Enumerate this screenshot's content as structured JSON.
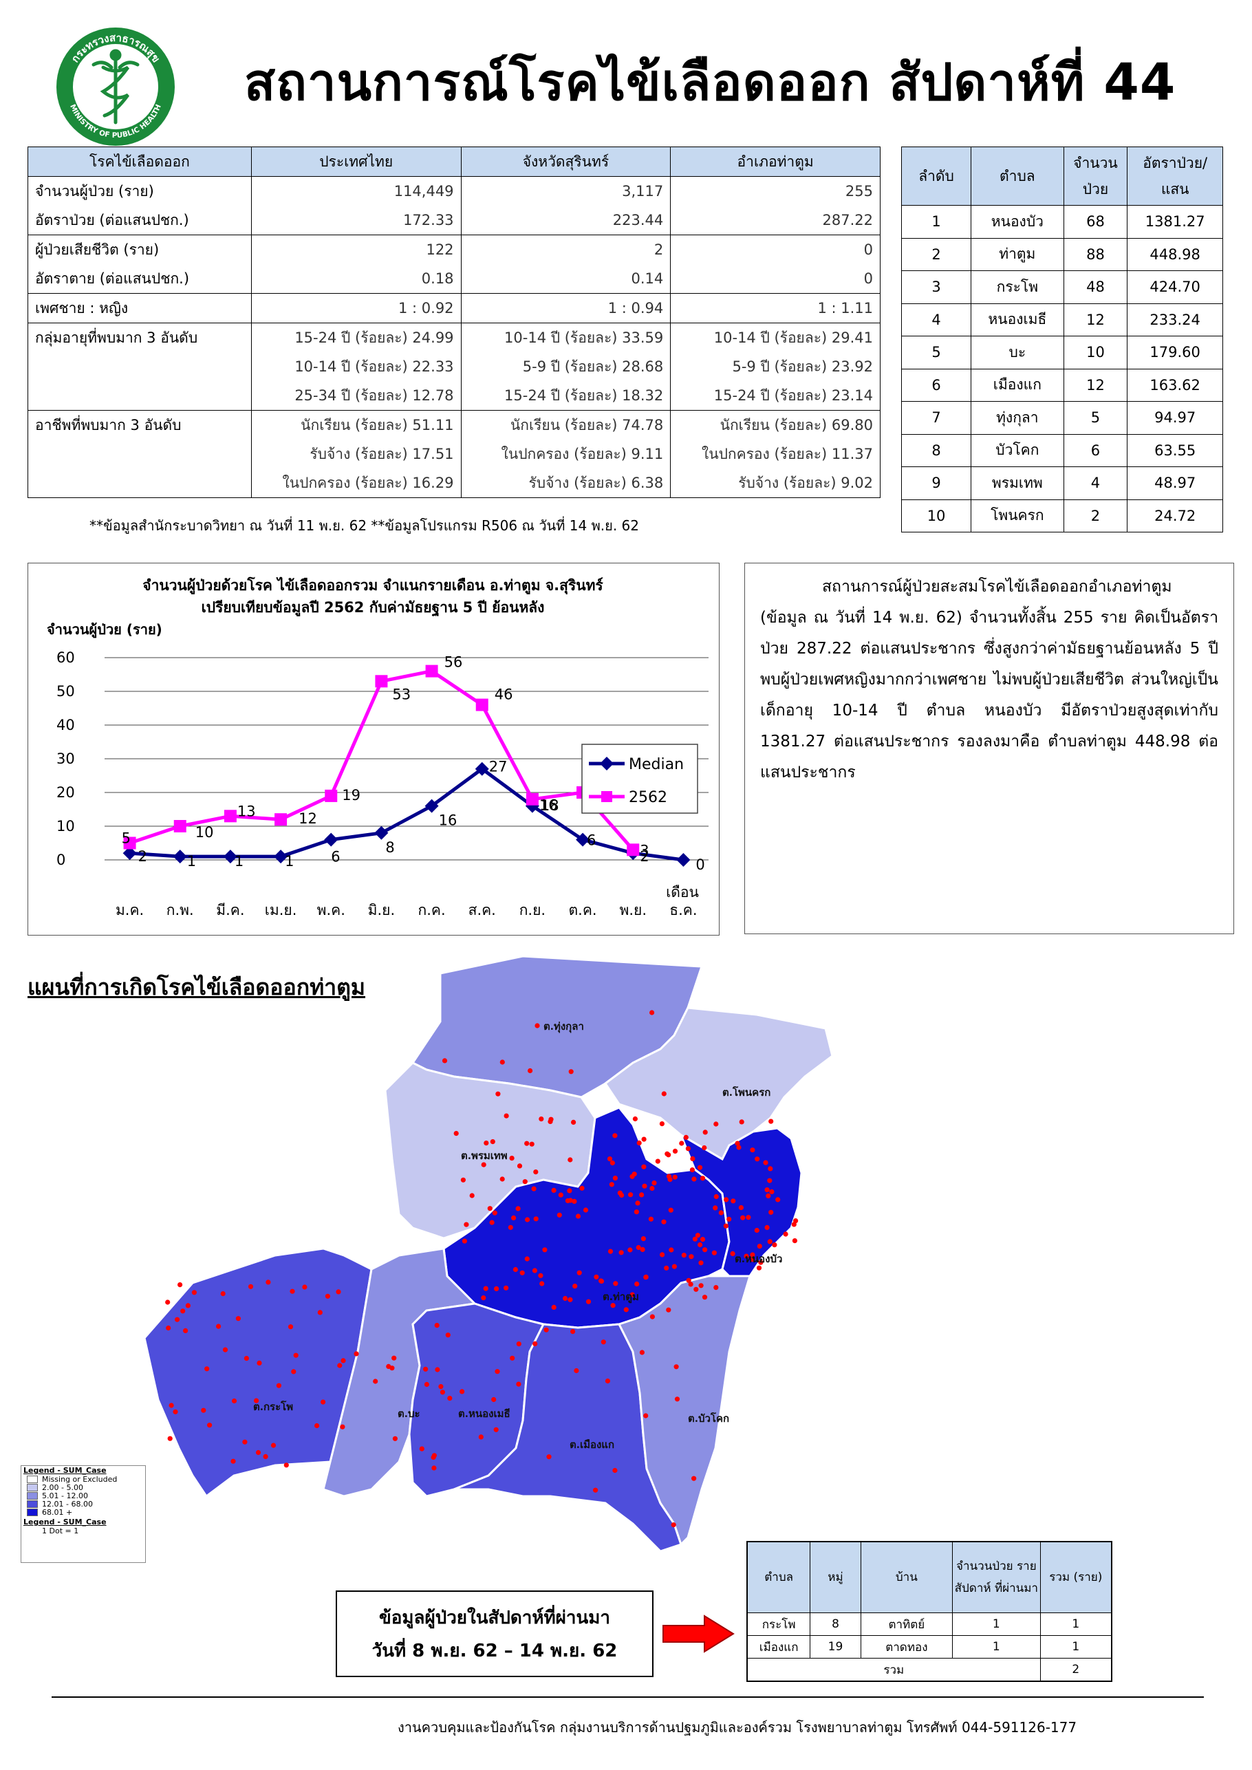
{
  "header": {
    "title": "สถานการณ์โรคไข้เลือดออก สัปดาห์ที่ 44",
    "logo_text_top": "กระทรวงสาธารณสุข",
    "logo_text_bottom": "MINISTRY OF PUBLIC HEALTH"
  },
  "summary_table": {
    "headers": [
      "โรคไข้เลือดออก",
      "ประเทศไทย",
      "จังหวัดสุรินทร์",
      "อำเภอท่าตูม"
    ],
    "rows": [
      {
        "label": "จำนวนผู้ป่วย (ราย)",
        "values": [
          "114,449",
          "3,117",
          "255"
        ]
      },
      {
        "label": "อัตราป่วย (ต่อแสนปชก.)",
        "values": [
          "172.33",
          "223.44",
          "287.22"
        ]
      },
      {
        "label": "ผู้ป่วยเสียชีวิต (ราย)",
        "values": [
          "122",
          "2",
          "0"
        ]
      },
      {
        "label": "อัตราตาย (ต่อแสนปชก.)",
        "values": [
          "0.18",
          "0.14",
          "0"
        ]
      },
      {
        "label": "เพศชาย : หญิง",
        "values": [
          "1 : 0.92",
          "1 : 0.94",
          "1 : 1.11"
        ]
      },
      {
        "label": "กลุ่มอายุที่พบมาก 3 อันดับ",
        "values": [
          "15-24 ปี (ร้อยละ) 24.99",
          "10-14 ปี (ร้อยละ) 33.59",
          "10-14 ปี (ร้อยละ) 29.41"
        ]
      },
      {
        "label": "",
        "values": [
          "10-14 ปี (ร้อยละ) 22.33",
          "5-9 ปี (ร้อยละ) 28.68",
          "5-9 ปี (ร้อยละ) 23.92"
        ]
      },
      {
        "label": "",
        "values": [
          "25-34 ปี (ร้อยละ) 12.78",
          "15-24 ปี (ร้อยละ) 18.32",
          "15-24 ปี (ร้อยละ) 23.14"
        ]
      },
      {
        "label": "อาชีพที่พบมาก 3 อันดับ",
        "values": [
          "นักเรียน (ร้อยละ) 51.11",
          "นักเรียน (ร้อยละ) 74.78",
          "นักเรียน (ร้อยละ) 69.80"
        ]
      },
      {
        "label": "",
        "values": [
          "รับจ้าง (ร้อยละ) 17.51",
          "ในปกครอง (ร้อยละ) 9.11",
          "ในปกครอง (ร้อยละ) 11.37"
        ]
      },
      {
        "label": "",
        "values": [
          "ในปกครอง (ร้อยละ) 16.29",
          "รับจ้าง (ร้อยละ) 6.38",
          "รับจ้าง (ร้อยละ) 9.02"
        ]
      }
    ]
  },
  "footnote": "**ข้อมูลสำนักระบาดวิทยา ณ วันที่ 11 พ.ย. 62 **ข้อมูลโปรแกรม R506 ณ วันที่ 14 พ.ย. 62",
  "rank_table": {
    "headers": [
      "ลำดับ",
      "ตำบล",
      "จำนวน ป่วย",
      "อัตราป่วย/ แสน"
    ],
    "rows": [
      [
        "1",
        "หนองบัว",
        "68",
        "1381.27"
      ],
      [
        "2",
        "ท่าตูม",
        "88",
        "448.98"
      ],
      [
        "3",
        "กระโพ",
        "48",
        "424.70"
      ],
      [
        "4",
        "หนองเมธี",
        "12",
        "233.24"
      ],
      [
        "5",
        "บะ",
        "10",
        "179.60"
      ],
      [
        "6",
        "เมืองแก",
        "12",
        "163.62"
      ],
      [
        "7",
        "ทุ่งกุลา",
        "5",
        "94.97"
      ],
      [
        "8",
        "บัวโคก",
        "6",
        "63.55"
      ],
      [
        "9",
        "พรมเทพ",
        "4",
        "48.97"
      ],
      [
        "10",
        "โพนครก",
        "2",
        "24.72"
      ]
    ]
  },
  "chart_data": {
    "type": "line",
    "title": "จำนวนผู้ป่วยด้วยโรค ไข้เลือดออกรวม จำแนกรายเดือน อ.ท่าตูม จ.สุรินทร์",
    "subtitle": "เปรียบเทียบข้อมูลปี  2562  กับค่ามัธยฐาน 5 ปี ย้อนหลัง",
    "ylabel": "จำนวนผู้ป่วย (ราย)",
    "xlabel": "เดือน",
    "categories": [
      "ม.ค.",
      "ก.พ.",
      "มี.ค.",
      "เม.ย.",
      "พ.ค.",
      "มิ.ย.",
      "ก.ค.",
      "ส.ค.",
      "ก.ย.",
      "ต.ค.",
      "พ.ย.",
      "ธ.ค."
    ],
    "ylim": [
      0,
      60
    ],
    "yticks": [
      "0",
      "10",
      "20",
      "30",
      "40",
      "50",
      "60"
    ],
    "grid": true,
    "legend_position": "right",
    "series": [
      {
        "name": "Median",
        "color": "#00008b",
        "marker": "diamond",
        "values": [
          2,
          1,
          1,
          1,
          6,
          8,
          16,
          27,
          16,
          6,
          2,
          0
        ],
        "labels": [
          "2",
          "1",
          "1",
          "1",
          "6",
          "8",
          "16",
          "27",
          "16",
          "6",
          "2",
          "0"
        ]
      },
      {
        "name": "2562",
        "color": "#ff00ff",
        "marker": "square",
        "values": [
          5,
          10,
          13,
          12,
          19,
          53,
          56,
          46,
          18,
          20,
          3,
          null
        ],
        "labels": [
          "5",
          "10",
          "13",
          "12",
          "19",
          "53",
          "56",
          "46",
          "18",
          "20",
          "3",
          ""
        ]
      }
    ]
  },
  "description": "สถานการณ์ผู้ป่วยสะสมโรคไข้เลือดออกอำเภอท่าตูม (ข้อมูล ณ วันที่ 14 พ.ย. 62) จำนวนทั้งสิ้น 255 ราย คิดเป็นอัตราป่วย 287.22 ต่อแสนประชากร ซึ่งสูงกว่าค่ามัธยฐานย้อนหลัง 5 ปี พบผู้ป่วยเพศหญิงมากกว่าเพศชาย ไม่พบผู้ป่วยเสียชีวิต ส่วนใหญ่เป็นเด็กอายุ 10-14 ปี ตำบล หนองบัว มีอัตราป่วยสูงสุดเท่ากับ 1381.27 ต่อแสนประชากร รองลงมาคือ ตำบลท่าตูม 448.98 ต่อแสนประชากร",
  "map": {
    "title": "แผนที่การเกิดโรคไข้เลือดออกท่าตูม",
    "labels": {
      "thungkula": "ต.ทุ่งกุลา",
      "phonkrok": "ต.โพนครก",
      "phromthep": "ต.พรมเทพ",
      "nongbua": "ต.หนองบัว",
      "thatum": "ต.ท่าตูม",
      "krapho": "ต.กระโพ",
      "ba": "ต.บะ",
      "nongmethi": "ต.หนองเมธี",
      "muangkae": "ต.เมืองแก",
      "buakhok": "ต.บัวโคก"
    },
    "colors": {
      "level1": "#c5c8f0",
      "level2": "#8b8fe3",
      "level3": "#4e4edb",
      "level4": "#1212d6",
      "dot": "#ff0000"
    },
    "legend": {
      "title": "Legend - SUM_Case",
      "items": [
        "Missing or Excluded",
        "2.00 - 5.00",
        "5.01 - 12.00",
        "12.01 - 68.00",
        "68.01 +"
      ],
      "title2": "Legend - SUM_Case",
      "dot": "1 Dot = 1"
    }
  },
  "last_week_box": {
    "line1": "ข้อมูลผู้ป่วยในสัปดาห์ที่ผ่านมา",
    "line2": "วันที่ 8 พ.ย. 62 – 14 พ.ย. 62"
  },
  "week_table": {
    "headers": [
      "ตำบล",
      "หมู่",
      "บ้าน",
      "จำนวนป่วย รายสัปดาห์ ที่ผ่านมา",
      "รวม (ราย)"
    ],
    "rows": [
      [
        "กระโพ",
        "8",
        "ตาทิตย์",
        "1",
        "1"
      ],
      [
        "เมืองแก",
        "19",
        "ตาดทอง",
        "1",
        "1"
      ]
    ],
    "total_label": "รวม",
    "total_value": "2"
  },
  "footer": "งานควบคุมและป้องกันโรค กลุ่มงานบริการด้านปฐมภูมิและองค์รวม  โรงพยาบาลท่าตูม  โทรศัพท์ 044-591126-177"
}
